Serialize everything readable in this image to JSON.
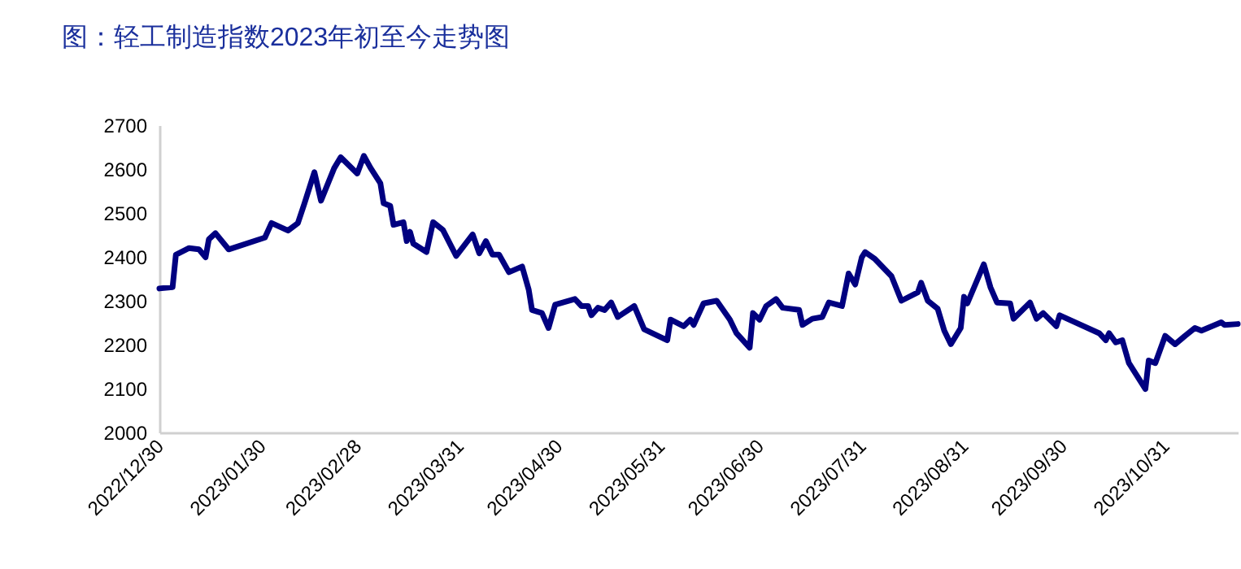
{
  "chart_data": {
    "type": "line",
    "title": "图：轻工制造指数2023年初至今走势图",
    "x": [
      "2022-12-30",
      "2023-01-03",
      "2023-01-04",
      "2023-01-08",
      "2023-01-11",
      "2023-01-13",
      "2023-01-14",
      "2023-01-16",
      "2023-01-20",
      "2023-01-31",
      "2023-02-02",
      "2023-02-07",
      "2023-02-10",
      "2023-02-12",
      "2023-02-15",
      "2023-02-17",
      "2023-02-21",
      "2023-02-23",
      "2023-02-28",
      "2023-03-02",
      "2023-03-04",
      "2023-03-07",
      "2023-03-08",
      "2023-03-10",
      "2023-03-11",
      "2023-03-14",
      "2023-03-15",
      "2023-03-16",
      "2023-03-17",
      "2023-03-21",
      "2023-03-23",
      "2023-03-26",
      "2023-03-30",
      "2023-04-04",
      "2023-04-06",
      "2023-04-08",
      "2023-04-10",
      "2023-04-12",
      "2023-04-15",
      "2023-04-19",
      "2023-04-21",
      "2023-04-22",
      "2023-04-25",
      "2023-04-27",
      "2023-04-29",
      "2023-05-05",
      "2023-05-07",
      "2023-05-09",
      "2023-05-10",
      "2023-05-12",
      "2023-05-14",
      "2023-05-16",
      "2023-05-18",
      "2023-05-23",
      "2023-05-26",
      "2023-06-02",
      "2023-06-03",
      "2023-06-07",
      "2023-06-09",
      "2023-06-10",
      "2023-06-13",
      "2023-06-17",
      "2023-06-21",
      "2023-06-23",
      "2023-06-27",
      "2023-06-28",
      "2023-06-30",
      "2023-07-02",
      "2023-07-05",
      "2023-07-07",
      "2023-07-12",
      "2023-07-13",
      "2023-07-16",
      "2023-07-19",
      "2023-07-21",
      "2023-07-25",
      "2023-07-27",
      "2023-07-29",
      "2023-07-31",
      "2023-08-01",
      "2023-08-04",
      "2023-08-09",
      "2023-08-12",
      "2023-08-17",
      "2023-08-18",
      "2023-08-20",
      "2023-08-23",
      "2023-08-25",
      "2023-08-27",
      "2023-08-30",
      "2023-08-31",
      "2023-09-01",
      "2023-09-06",
      "2023-09-08",
      "2023-09-10",
      "2023-09-14",
      "2023-09-15",
      "2023-09-20",
      "2023-09-22",
      "2023-09-24",
      "2023-09-28",
      "2023-09-29",
      "2023-10-11",
      "2023-10-13",
      "2023-10-14",
      "2023-10-16",
      "2023-10-18",
      "2023-10-20",
      "2023-10-25",
      "2023-10-26",
      "2023-10-28",
      "2023-10-31",
      "2023-11-03",
      "2023-11-06",
      "2023-11-09",
      "2023-11-11",
      "2023-11-17",
      "2023-11-18",
      "2023-11-22"
    ],
    "series": [
      {
        "color": "#000080",
        "values": [
          2328,
          2331,
          2405,
          2420,
          2417,
          2399,
          2440,
          2454,
          2417,
          2444,
          2477,
          2460,
          2477,
          2522,
          2593,
          2528,
          2602,
          2627,
          2590,
          2630,
          2603,
          2568,
          2522,
          2516,
          2473,
          2479,
          2436,
          2457,
          2430,
          2411,
          2479,
          2461,
          2402,
          2451,
          2408,
          2436,
          2405,
          2405,
          2365,
          2378,
          2325,
          2279,
          2272,
          2238,
          2291,
          2304,
          2288,
          2288,
          2267,
          2284,
          2279,
          2296,
          2263,
          2288,
          2235,
          2210,
          2257,
          2242,
          2257,
          2245,
          2294,
          2300,
          2257,
          2226,
          2193,
          2272,
          2257,
          2288,
          2304,
          2284,
          2279,
          2245,
          2259,
          2263,
          2296,
          2288,
          2362,
          2337,
          2399,
          2411,
          2395,
          2356,
          2300,
          2319,
          2341,
          2300,
          2282,
          2232,
          2201,
          2238,
          2309,
          2294,
          2383,
          2331,
          2296,
          2294,
          2259,
          2296,
          2259,
          2272,
          2242,
          2267,
          2226,
          2210,
          2226,
          2205,
          2210,
          2158,
          2099,
          2164,
          2158,
          2220,
          2201,
          2220,
          2238,
          2232,
          2251,
          2245,
          2247
        ]
      }
    ],
    "xlim": [
      "2022-12-30",
      "2023-11-22"
    ],
    "xticks": [
      {
        "value": "2022-12-30",
        "label": "2022/12/30"
      },
      {
        "value": "2023-01-30",
        "label": "2023/01/30"
      },
      {
        "value": "2023-02-28",
        "label": "2023/02/28"
      },
      {
        "value": "2023-03-31",
        "label": "2023/03/31"
      },
      {
        "value": "2023-04-30",
        "label": "2023/04/30"
      },
      {
        "value": "2023-05-31",
        "label": "2023/05/31"
      },
      {
        "value": "2023-06-30",
        "label": "2023/06/30"
      },
      {
        "value": "2023-07-31",
        "label": "2023/07/31"
      },
      {
        "value": "2023-08-31",
        "label": "2023/08/31"
      },
      {
        "value": "2023-09-30",
        "label": "2023/09/30"
      },
      {
        "value": "2023-10-31",
        "label": "2023/10/31"
      }
    ],
    "ylim": [
      2000,
      2700
    ],
    "yticks": [
      2000,
      2100,
      2200,
      2300,
      2400,
      2500,
      2600,
      2700
    ]
  }
}
